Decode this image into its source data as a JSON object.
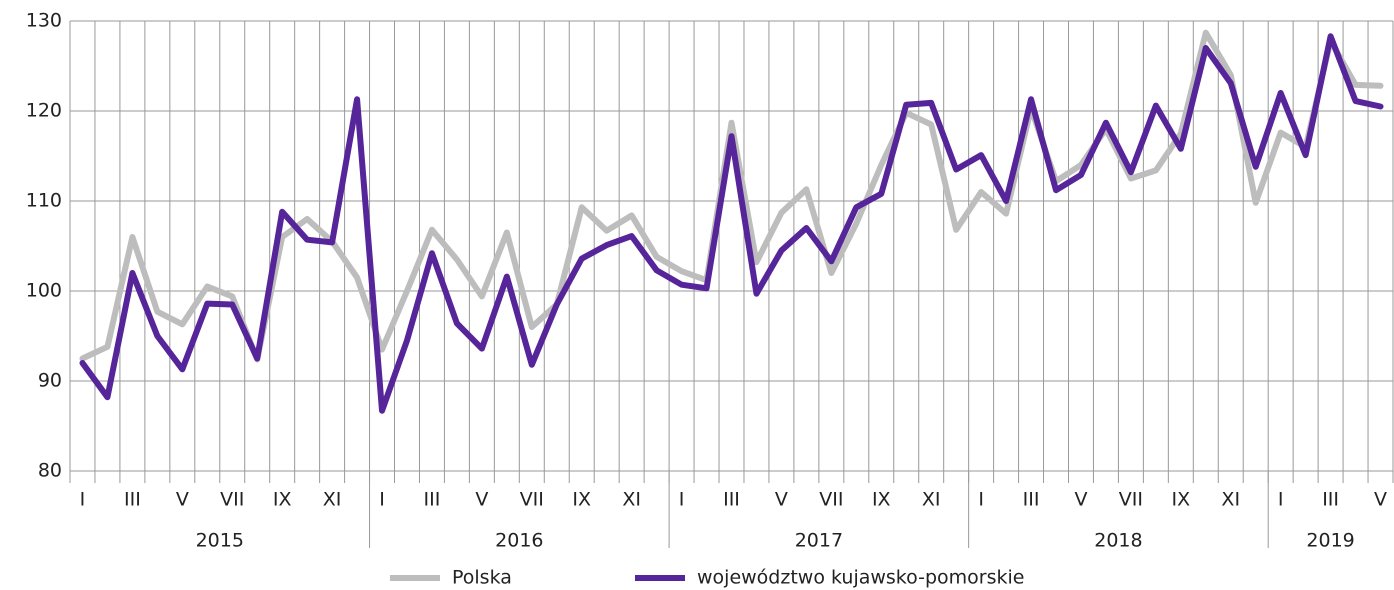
{
  "chart_data": {
    "type": "line",
    "categories": [
      "I",
      null,
      "III",
      null,
      "V",
      null,
      "VII",
      null,
      "IX",
      null,
      "XI",
      null,
      "I",
      null,
      "III",
      null,
      "V",
      null,
      "VII",
      null,
      "IX",
      null,
      "XI",
      null,
      "I",
      null,
      "III",
      null,
      "V",
      null,
      "VII",
      null,
      "IX",
      null,
      "XI",
      null,
      "I",
      null,
      "III",
      null,
      "V",
      null,
      "VII",
      null,
      "IX",
      null,
      "XI",
      null,
      "I",
      null,
      "III",
      null,
      "V"
    ],
    "groups": [
      {
        "label": "2015",
        "count": 12
      },
      {
        "label": "2016",
        "count": 12
      },
      {
        "label": "2017",
        "count": 12
      },
      {
        "label": "2018",
        "count": 12
      },
      {
        "label": "2019",
        "count": 5
      }
    ],
    "series": [
      {
        "name": "Polska",
        "color": "#bdbdbd",
        "values": [
          92.5,
          93.8,
          106,
          97.7,
          96.3,
          100.5,
          99.4,
          92.4,
          106,
          108,
          105.5,
          101.5,
          93.5,
          100,
          106.8,
          103.5,
          99.4,
          106.5,
          96,
          98.5,
          109.3,
          106.7,
          108.4,
          103.8,
          102.2,
          101.2,
          118.7,
          103.2,
          108.7,
          111.3,
          102,
          107.5,
          114,
          119.8,
          118.5,
          106.8,
          111,
          108.6,
          120.3,
          112.2,
          114,
          118,
          112.5,
          113.4,
          117.5,
          128.7,
          124,
          109.8,
          117.6,
          116,
          127.8,
          122.9,
          122.8
        ]
      },
      {
        "name": "województwo kujawsko-pomorskie",
        "color": "#56259a",
        "values": [
          92,
          88.2,
          102,
          95,
          91.3,
          98.6,
          98.5,
          92.5,
          108.8,
          105.7,
          105.4,
          121.3,
          86.7,
          94.5,
          104.2,
          96.4,
          93.6,
          101.6,
          91.8,
          98.5,
          103.6,
          105.1,
          106.1,
          102.3,
          100.7,
          100.3,
          117.2,
          99.7,
          104.5,
          107,
          103.3,
          109.3,
          110.8,
          120.7,
          120.9,
          113.5,
          115.1,
          110,
          121.3,
          111.2,
          112.9,
          118.7,
          113.2,
          120.6,
          115.8,
          127,
          123.1,
          113.8,
          122,
          115.1,
          128.3,
          121.1,
          120.5
        ]
      }
    ],
    "ylim": [
      80,
      130
    ],
    "yticks": [
      80,
      90,
      100,
      110,
      120,
      130
    ],
    "grid": true,
    "legend": "bottom"
  }
}
